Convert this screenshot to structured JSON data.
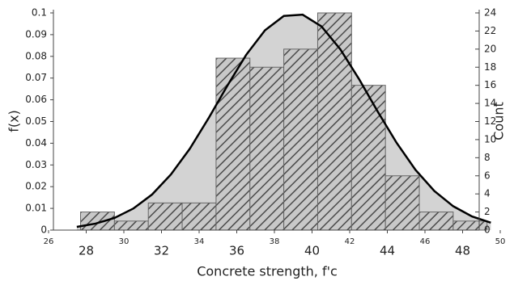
{
  "chart_data": {
    "type": "histogram",
    "xlabel": "Concrete strength, f'c",
    "ylabel": "f(x)",
    "y2label": "Count",
    "xlim": [
      26,
      50
    ],
    "xticks": [
      26,
      28,
      30,
      32,
      34,
      36,
      38,
      40,
      42,
      44,
      46,
      48,
      50
    ],
    "ylim": [
      0,
      0.1
    ],
    "yticks": [
      0,
      0.01,
      0.02,
      0.03,
      0.04,
      0.05,
      0.06,
      0.07,
      0.08,
      0.09,
      0.1
    ],
    "y2lim": [
      0,
      24
    ],
    "y2ticks": [
      0,
      2,
      4,
      6,
      8,
      10,
      12,
      14,
      16,
      18,
      20,
      22,
      24
    ],
    "bins": [
      27.7,
      29.5,
      31.3,
      33.1,
      34.9,
      36.7,
      38.5,
      40.3,
      42.1,
      43.9,
      45.7,
      47.5,
      49.3
    ],
    "series": [
      {
        "type": "histogram",
        "axis": "y2",
        "color": "#c8c8c8",
        "hatch_color": "#4a4a4a",
        "values": [
          2,
          1,
          3,
          3,
          19,
          18,
          20,
          24,
          16,
          6,
          2,
          1
        ]
      },
      {
        "type": "line",
        "color": "#000000",
        "fill": "#d3d3d3",
        "x": [
          27.5,
          28.5,
          29.5,
          30.5,
          31.5,
          32.5,
          33.5,
          34.5,
          35.5,
          36.5,
          37.5,
          38.5,
          39.5,
          40.5,
          41.5,
          42.5,
          43.5,
          44.5,
          45.5,
          46.5,
          47.5,
          48.5,
          49.5
        ],
        "values": [
          0.0015,
          0.003,
          0.0056,
          0.0099,
          0.0164,
          0.0256,
          0.0374,
          0.0515,
          0.0665,
          0.0807,
          0.092,
          0.0986,
          0.0992,
          0.0938,
          0.0833,
          0.0695,
          0.0544,
          0.0401,
          0.0277,
          0.018,
          0.011,
          0.0063,
          0.0034
        ]
      }
    ]
  }
}
